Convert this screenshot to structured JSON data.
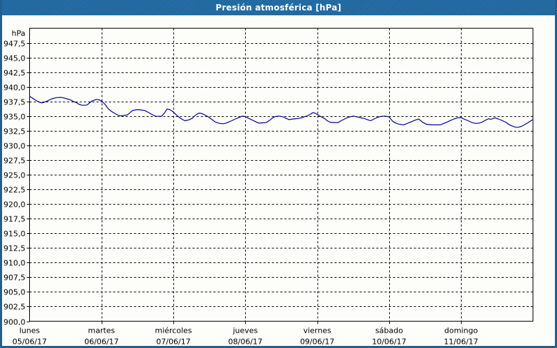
{
  "header": {
    "title": "Presión atmosférica [hPa]"
  },
  "colors": {
    "titlebar": "#1e6aa3",
    "window_border": "#235f8a",
    "plot_background": "#fdfdfa",
    "grid": "#000000",
    "line": "#0000a0",
    "label_text": "#000000",
    "title_text": "#ffffff"
  },
  "chart_data": {
    "type": "line",
    "title": "Presión atmosférica [hPa]",
    "ylabel": "hPa",
    "xlabel": "",
    "ylim": [
      900.0,
      950.0
    ],
    "xlim_days": [
      0,
      7
    ],
    "grid": "dashed",
    "legend": "none",
    "decimal_separator": ",",
    "y_ticks": [
      947.5,
      945.0,
      942.5,
      940.0,
      937.5,
      935.0,
      932.5,
      930.0,
      927.5,
      925.0,
      922.5,
      920.0,
      917.5,
      915.0,
      912.5,
      910.0,
      907.5,
      905.0,
      902.5,
      900.0
    ],
    "days": [
      {
        "name": "lunes",
        "date": "05/06/17"
      },
      {
        "name": "martes",
        "date": "06/06/17"
      },
      {
        "name": "miércoles",
        "date": "07/06/17"
      },
      {
        "name": "jueves",
        "date": "08/06/17"
      },
      {
        "name": "viernes",
        "date": "09/06/17"
      },
      {
        "name": "sábado",
        "date": "10/06/17"
      },
      {
        "name": "domingo",
        "date": "11/06/17"
      }
    ],
    "series": [
      {
        "name": "Presión atmosférica",
        "color": "#0000a0",
        "points": [
          [
            0.0,
            938.4
          ],
          [
            0.06,
            937.9
          ],
          [
            0.1,
            937.6
          ],
          [
            0.14,
            937.35
          ],
          [
            0.17,
            937.25
          ],
          [
            0.21,
            937.4
          ],
          [
            0.25,
            937.6
          ],
          [
            0.31,
            937.95
          ],
          [
            0.37,
            938.15
          ],
          [
            0.43,
            938.2
          ],
          [
            0.46,
            938.15
          ],
          [
            0.52,
            937.95
          ],
          [
            0.56,
            937.8
          ],
          [
            0.61,
            937.5
          ],
          [
            0.65,
            937.3
          ],
          [
            0.69,
            937.0
          ],
          [
            0.73,
            936.85
          ],
          [
            0.77,
            936.85
          ],
          [
            0.8,
            936.9
          ],
          [
            0.84,
            937.3
          ],
          [
            0.87,
            937.6
          ],
          [
            0.93,
            937.85
          ],
          [
            0.97,
            937.75
          ],
          [
            1.0,
            937.6
          ],
          [
            1.05,
            937.0
          ],
          [
            1.09,
            936.3
          ],
          [
            1.14,
            935.8
          ],
          [
            1.18,
            935.5
          ],
          [
            1.22,
            935.2
          ],
          [
            1.26,
            935.05
          ],
          [
            1.31,
            935.1
          ],
          [
            1.36,
            935.2
          ],
          [
            1.4,
            935.6
          ],
          [
            1.43,
            935.95
          ],
          [
            1.49,
            936.1
          ],
          [
            1.55,
            936.05
          ],
          [
            1.6,
            935.95
          ],
          [
            1.64,
            935.7
          ],
          [
            1.67,
            935.5
          ],
          [
            1.72,
            935.15
          ],
          [
            1.76,
            934.95
          ],
          [
            1.8,
            934.95
          ],
          [
            1.84,
            935.0
          ],
          [
            1.88,
            935.6
          ],
          [
            1.91,
            936.2
          ],
          [
            1.95,
            936.1
          ],
          [
            2.0,
            935.7
          ],
          [
            2.04,
            935.2
          ],
          [
            2.08,
            934.8
          ],
          [
            2.12,
            934.45
          ],
          [
            2.16,
            934.2
          ],
          [
            2.21,
            934.35
          ],
          [
            2.26,
            934.6
          ],
          [
            2.3,
            935.1
          ],
          [
            2.35,
            935.5
          ],
          [
            2.38,
            935.5
          ],
          [
            2.42,
            935.3
          ],
          [
            2.46,
            935.05
          ],
          [
            2.49,
            934.8
          ],
          [
            2.54,
            934.4
          ],
          [
            2.58,
            934.0
          ],
          [
            2.63,
            933.8
          ],
          [
            2.66,
            933.7
          ],
          [
            2.7,
            933.7
          ],
          [
            2.73,
            933.8
          ],
          [
            2.77,
            934.0
          ],
          [
            2.81,
            934.2
          ],
          [
            2.86,
            934.5
          ],
          [
            2.9,
            934.7
          ],
          [
            2.96,
            935.0
          ],
          [
            3.0,
            934.9
          ],
          [
            3.05,
            934.6
          ],
          [
            3.1,
            934.3
          ],
          [
            3.15,
            934.0
          ],
          [
            3.19,
            933.8
          ],
          [
            3.24,
            933.85
          ],
          [
            3.29,
            933.9
          ],
          [
            3.34,
            934.3
          ],
          [
            3.39,
            934.8
          ],
          [
            3.43,
            934.95
          ],
          [
            3.47,
            935.0
          ],
          [
            3.53,
            934.85
          ],
          [
            3.57,
            934.6
          ],
          [
            3.61,
            934.4
          ],
          [
            3.66,
            934.5
          ],
          [
            3.7,
            934.55
          ],
          [
            3.74,
            934.6
          ],
          [
            3.78,
            934.7
          ],
          [
            3.83,
            934.9
          ],
          [
            3.87,
            935.1
          ],
          [
            3.91,
            935.35
          ],
          [
            3.94,
            935.6
          ],
          [
            3.97,
            935.5
          ],
          [
            4.0,
            935.3
          ],
          [
            4.05,
            934.9
          ],
          [
            4.1,
            934.6
          ],
          [
            4.14,
            934.2
          ],
          [
            4.18,
            933.95
          ],
          [
            4.24,
            933.9
          ],
          [
            4.29,
            933.9
          ],
          [
            4.33,
            934.2
          ],
          [
            4.38,
            934.5
          ],
          [
            4.43,
            934.8
          ],
          [
            4.5,
            935.0
          ],
          [
            4.54,
            934.9
          ],
          [
            4.58,
            934.8
          ],
          [
            4.61,
            934.7
          ],
          [
            4.65,
            934.6
          ],
          [
            4.7,
            934.4
          ],
          [
            4.74,
            934.2
          ],
          [
            4.79,
            934.5
          ],
          [
            4.84,
            934.8
          ],
          [
            4.89,
            934.95
          ],
          [
            4.93,
            935.0
          ],
          [
            4.97,
            934.95
          ],
          [
            5.0,
            934.85
          ],
          [
            5.03,
            934.4
          ],
          [
            5.06,
            934.0
          ],
          [
            5.1,
            933.75
          ],
          [
            5.13,
            933.65
          ],
          [
            5.17,
            933.55
          ],
          [
            5.2,
            933.5
          ],
          [
            5.26,
            933.8
          ],
          [
            5.32,
            934.1
          ],
          [
            5.37,
            934.35
          ],
          [
            5.41,
            934.5
          ],
          [
            5.44,
            934.2
          ],
          [
            5.47,
            933.9
          ],
          [
            5.52,
            933.6
          ],
          [
            5.59,
            933.5
          ],
          [
            5.65,
            933.5
          ],
          [
            5.71,
            933.5
          ],
          [
            5.76,
            933.75
          ],
          [
            5.81,
            934.0
          ],
          [
            5.86,
            934.3
          ],
          [
            5.9,
            934.5
          ],
          [
            5.95,
            934.7
          ],
          [
            6.0,
            934.75
          ],
          [
            6.05,
            934.45
          ],
          [
            6.1,
            934.2
          ],
          [
            6.15,
            933.9
          ],
          [
            6.2,
            933.75
          ],
          [
            6.25,
            933.8
          ],
          [
            6.29,
            933.95
          ],
          [
            6.34,
            934.3
          ],
          [
            6.38,
            934.55
          ],
          [
            6.41,
            934.45
          ],
          [
            6.44,
            934.55
          ],
          [
            6.47,
            934.7
          ],
          [
            6.52,
            934.5
          ],
          [
            6.58,
            934.2
          ],
          [
            6.63,
            933.9
          ],
          [
            6.66,
            933.6
          ],
          [
            6.71,
            933.3
          ],
          [
            6.76,
            933.1
          ],
          [
            6.8,
            933.1
          ],
          [
            6.84,
            933.25
          ],
          [
            6.88,
            933.5
          ],
          [
            6.92,
            933.8
          ],
          [
            6.96,
            934.1
          ],
          [
            6.99,
            934.35
          ]
        ]
      }
    ]
  }
}
